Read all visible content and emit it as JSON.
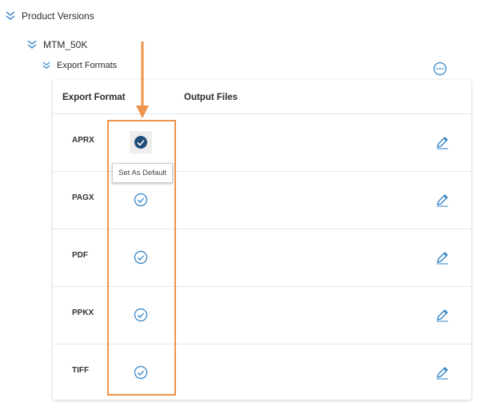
{
  "tree": {
    "level1": "Product Versions",
    "level2": "MTM_50K",
    "level3": "Export Formats"
  },
  "table": {
    "headers": [
      "Export Format",
      "Output Files"
    ],
    "rows": [
      {
        "format": "APRX",
        "is_default": true
      },
      {
        "format": "PAGX",
        "is_default": false
      },
      {
        "format": "PDF",
        "is_default": false
      },
      {
        "format": "PPKX",
        "is_default": false
      },
      {
        "format": "TIFF",
        "is_default": false
      }
    ]
  },
  "tooltip": "Set As Default",
  "colors": {
    "accent": "#2b7fc4",
    "default_check": "#1f4e79",
    "annotation": "#f0934a"
  }
}
